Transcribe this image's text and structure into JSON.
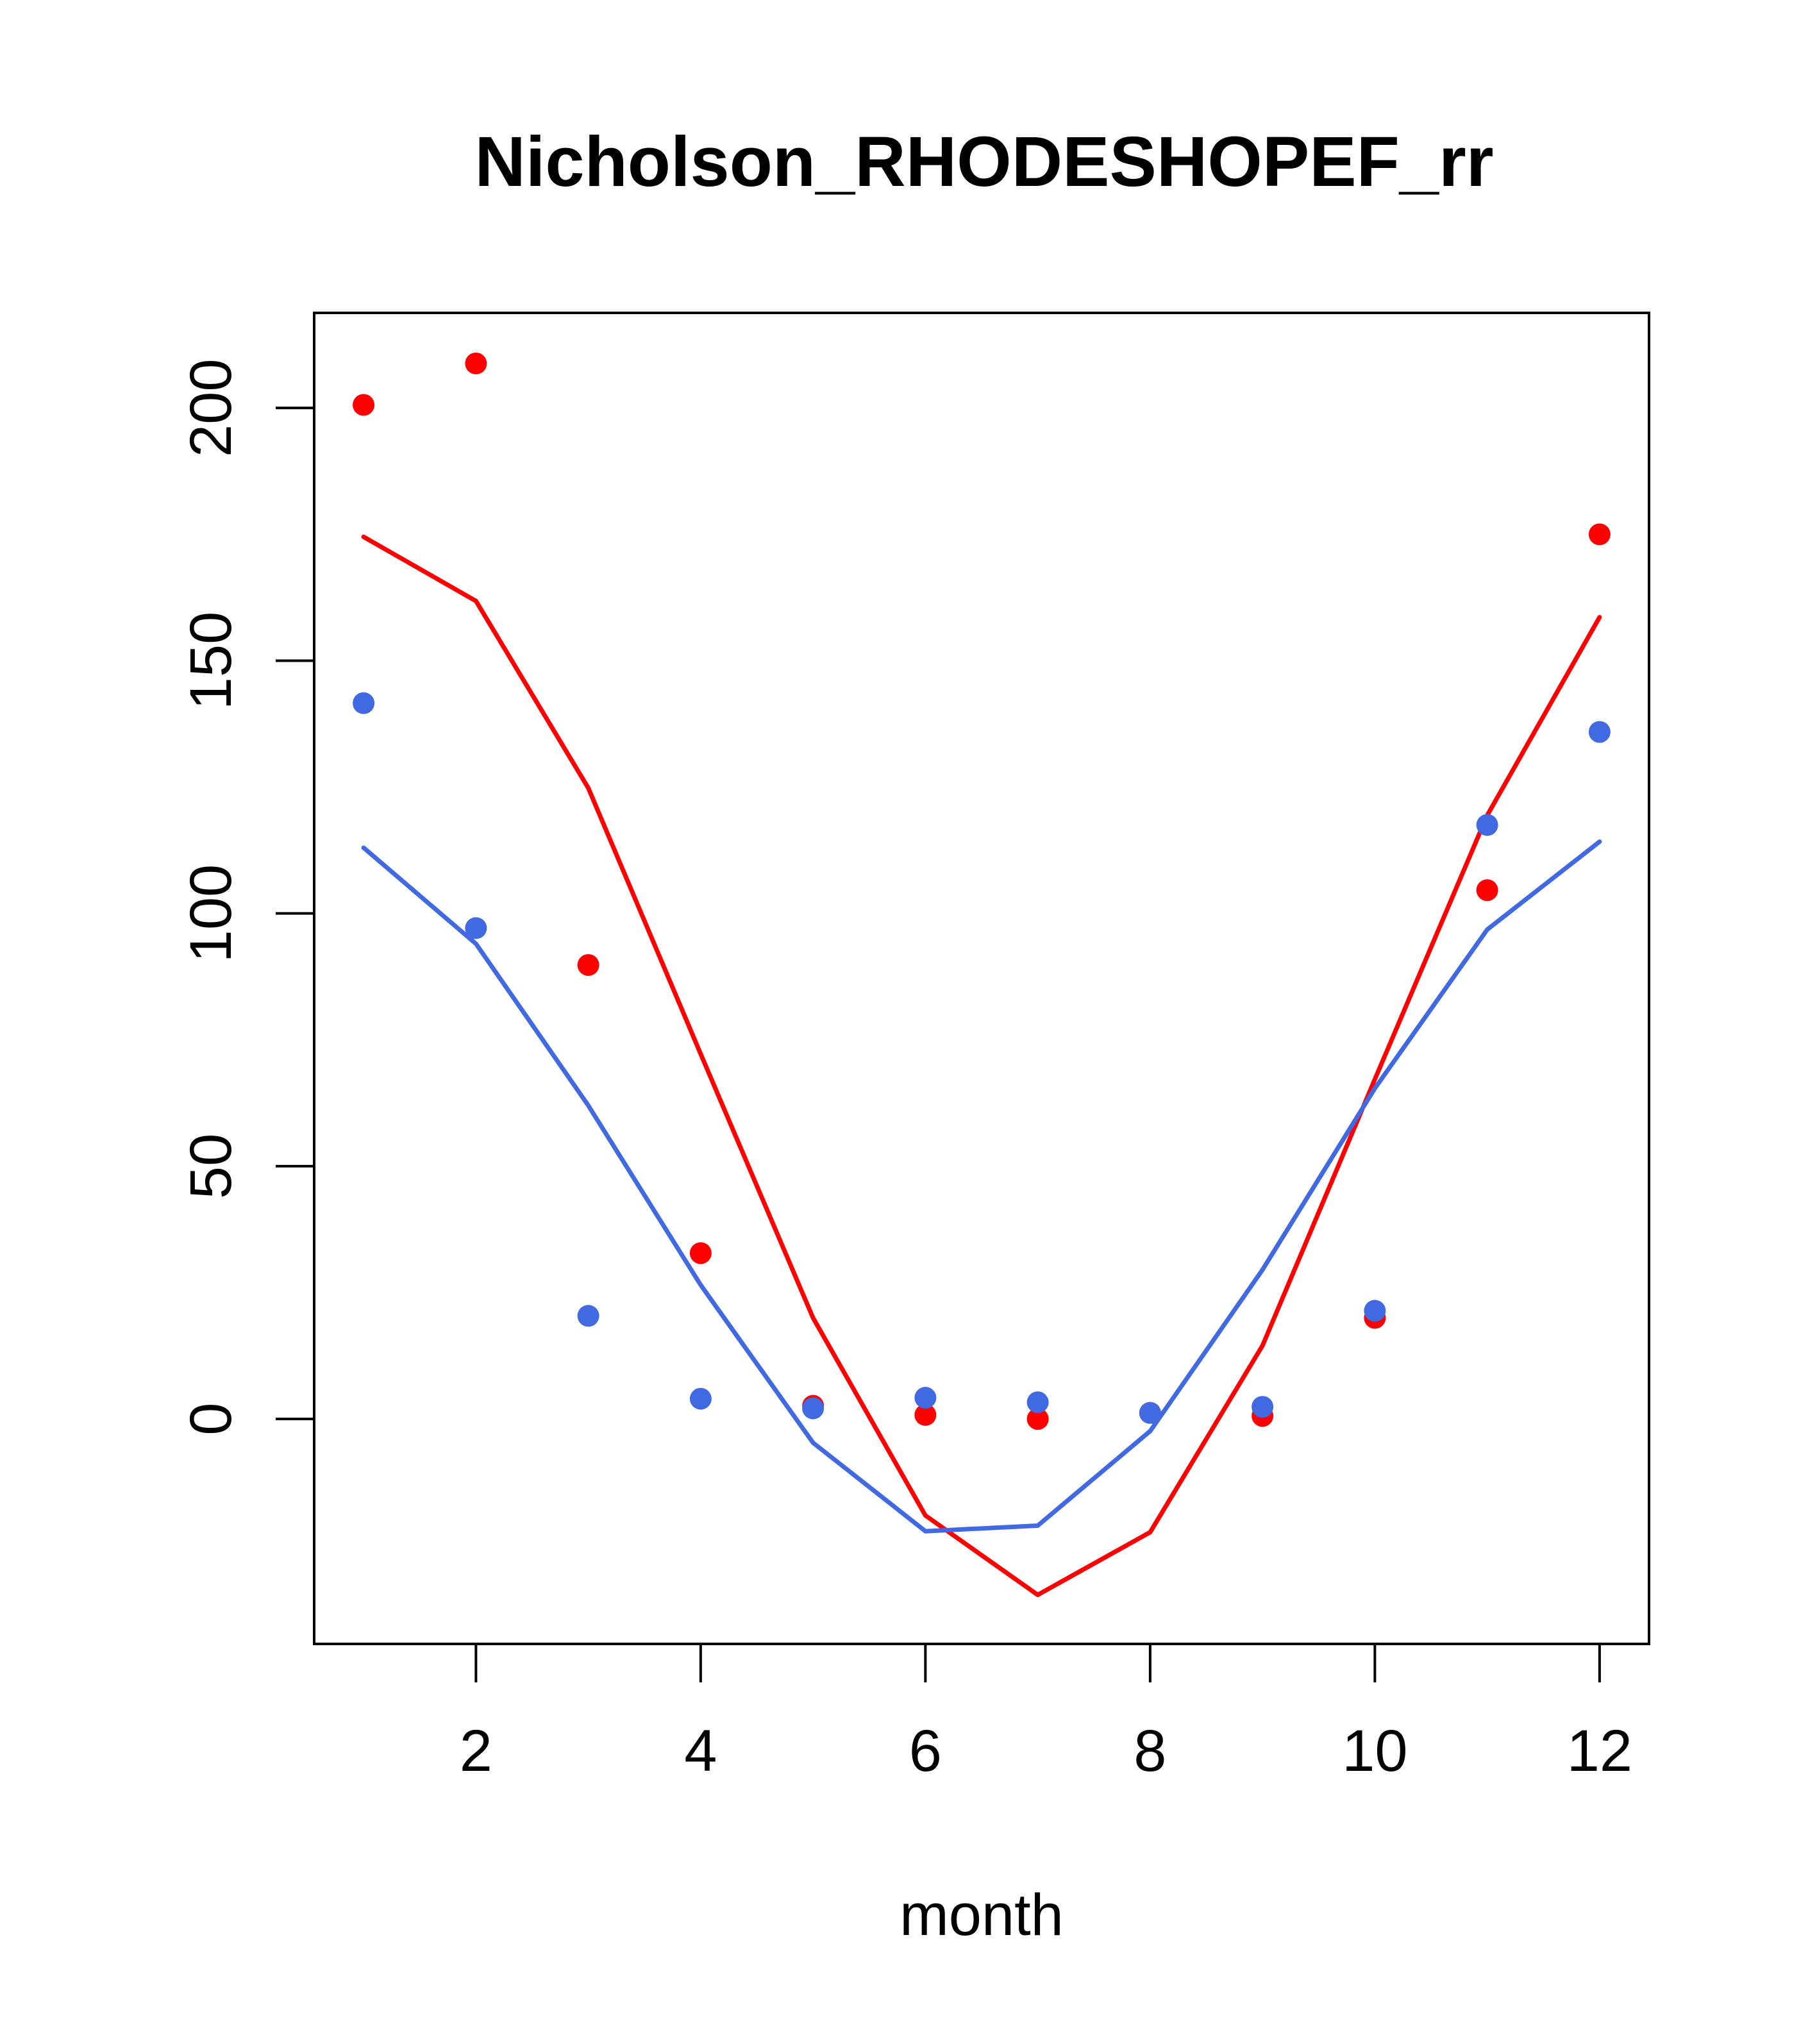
{
  "chart_data": {
    "type": "line",
    "title": "Nicholson_RHODESHOPEF_rr",
    "xlabel": "month",
    "ylabel": "",
    "xlim": [
      0.56,
      12.44
    ],
    "ylim": [
      -44.5,
      218.8
    ],
    "x_ticks": [
      2,
      4,
      6,
      8,
      10,
      12
    ],
    "y_ticks": [
      0,
      50,
      100,
      150,
      200
    ],
    "x": [
      1,
      2,
      3,
      4,
      5,
      6,
      7,
      8,
      9,
      10,
      11,
      12
    ],
    "grid": false,
    "legend": "none",
    "series": [
      {
        "kind": "points",
        "color": "#ff0000",
        "values": [
          200.6,
          208.8,
          89.8,
          32.8,
          2.6,
          0.8,
          0.0,
          1.2,
          0.6,
          20.0,
          104.6,
          175.0
        ]
      },
      {
        "kind": "points",
        "color": "#4169e1",
        "values": [
          141.6,
          97.1,
          20.4,
          4.0,
          2.1,
          4.2,
          3.3,
          1.2,
          2.4,
          21.4,
          117.5,
          135.9
        ]
      },
      {
        "kind": "line",
        "color": "#ff0000",
        "values": [
          174.5,
          161.8,
          124.8,
          72.2,
          20.0,
          -19.1,
          -34.8,
          -22.4,
          14.5,
          67.2,
          119.4,
          158.6
        ]
      },
      {
        "kind": "line",
        "color": "#4169e1",
        "values": [
          113.0,
          94.0,
          62.0,
          26.5,
          -4.7,
          -22.2,
          -21.1,
          -2.4,
          29.5,
          65.4,
          96.8,
          114.2
        ]
      }
    ]
  }
}
